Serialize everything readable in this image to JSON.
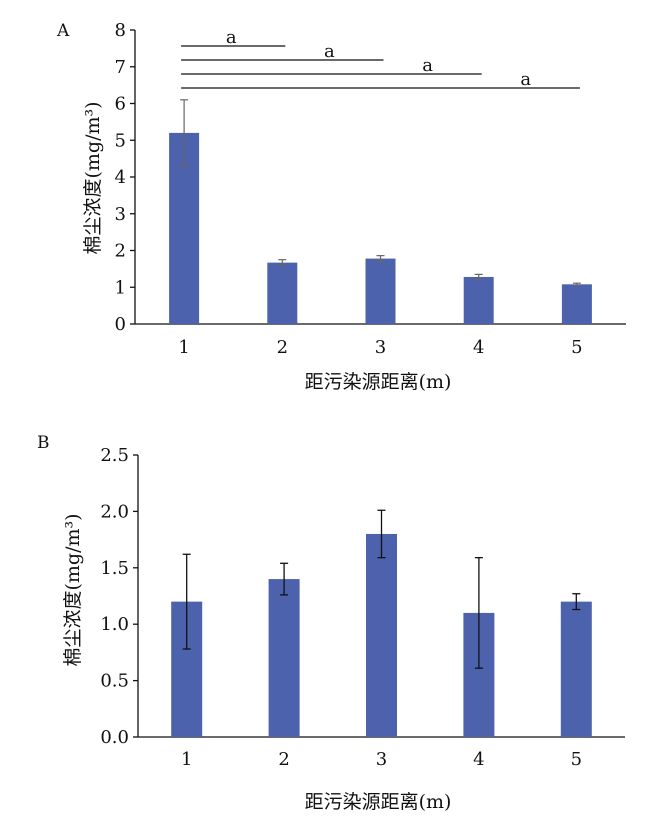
{
  "chart_data": [
    {
      "type": "bar",
      "panel_label": "A",
      "categories": [
        "1",
        "2",
        "3",
        "4",
        "5"
      ],
      "values": [
        5.2,
        1.67,
        1.78,
        1.28,
        1.08
      ],
      "errors": [
        0.9,
        0.08,
        0.08,
        0.07,
        0.03
      ],
      "xlabel": "距污染源距离(m)",
      "ylabel": "棉尘浓度(mg/m³)",
      "ylim": [
        0,
        8
      ],
      "yticks": [
        "0",
        "1",
        "2",
        "3",
        "4",
        "5",
        "6",
        "7",
        "8"
      ],
      "grid": false,
      "color": "#4d62ad",
      "significance": [
        {
          "from": "1",
          "to": "2",
          "label": "a"
        },
        {
          "from": "1",
          "to": "3",
          "label": "a"
        },
        {
          "from": "1",
          "to": "4",
          "label": "a"
        },
        {
          "from": "1",
          "to": "5",
          "label": "a"
        }
      ]
    },
    {
      "type": "bar",
      "panel_label": "B",
      "categories": [
        "1",
        "2",
        "3",
        "4",
        "5"
      ],
      "values": [
        1.2,
        1.4,
        1.8,
        1.1,
        1.2
      ],
      "errors": [
        0.42,
        0.14,
        0.21,
        0.49,
        0.07
      ],
      "xlabel": "距污染源距离(m)",
      "ylabel": "棉尘浓度(mg/m³)",
      "ylim": [
        0,
        2.5
      ],
      "yticks": [
        "0.0",
        "0.5",
        "1.0",
        "1.5",
        "2.0",
        "2.5"
      ],
      "grid": false,
      "color": "#4d62ad"
    }
  ]
}
